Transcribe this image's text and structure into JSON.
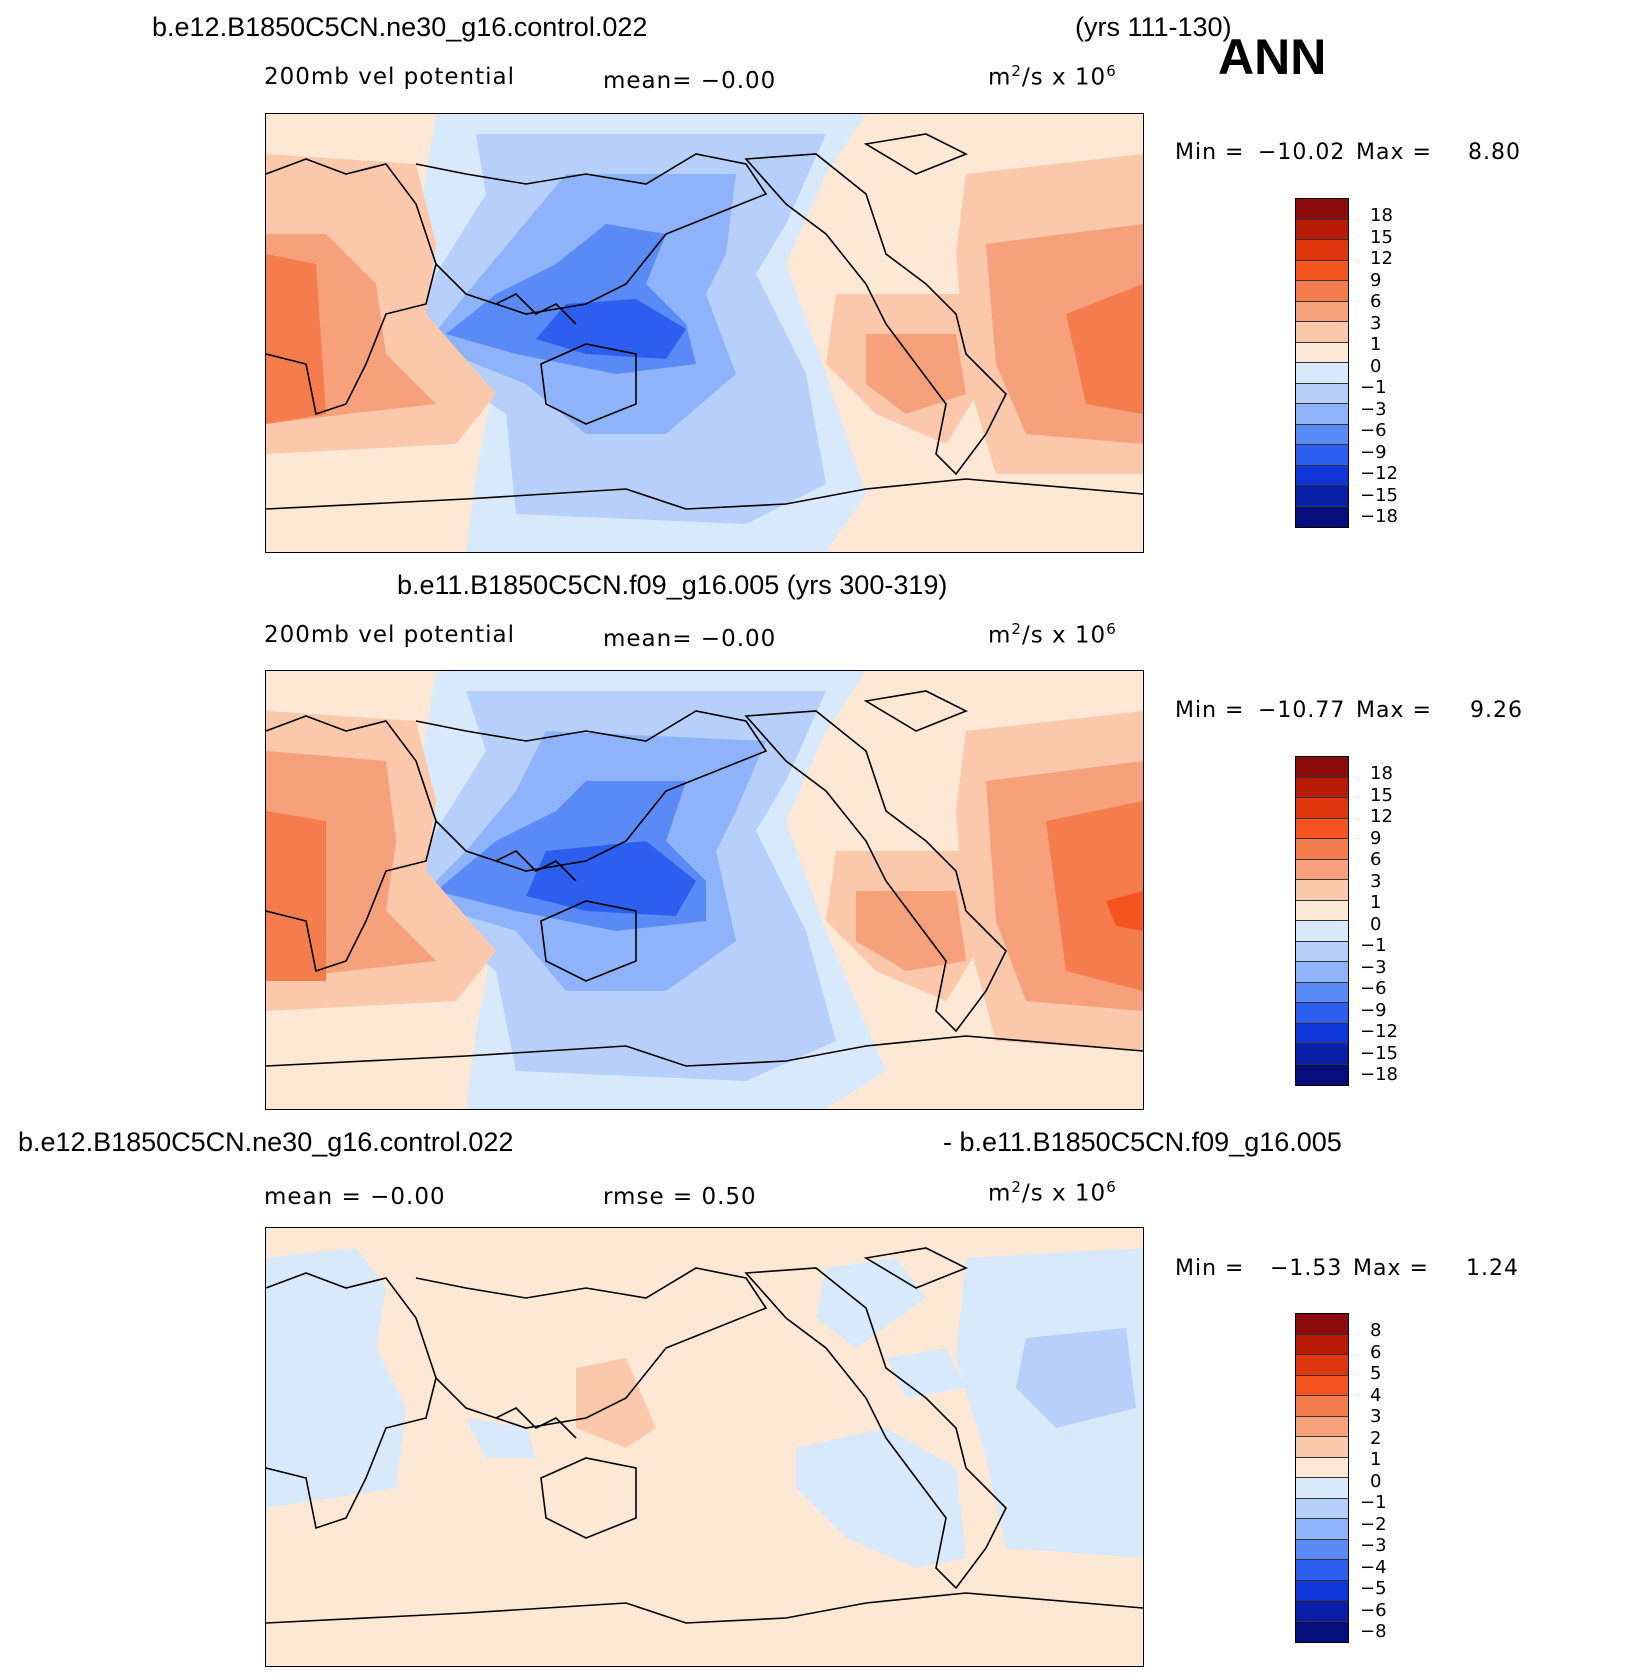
{
  "header": {
    "case1_title": "b.e12.B1850C5CN.ne30_g16.control.022",
    "case1_years": "(yrs 111-130)",
    "season": "ANN"
  },
  "panels": [
    {
      "id": "top",
      "left_label": "200mb  vel  potential",
      "mid_label": "mean=   −0.00",
      "units_base": "m",
      "units_exp1": "2",
      "units_mid": "/s  x  10",
      "units_exp2": "6",
      "min_label": "Min  =",
      "min_value": "−10.02",
      "max_label": "Max  =",
      "max_value": "8.80"
    },
    {
      "id": "middle",
      "title": "b.e11.B1850C5CN.f09_g16.005 (yrs 300-319)",
      "left_label": "200mb  vel  potential",
      "mid_label": "mean=   −0.00",
      "units_base": "m",
      "units_exp1": "2",
      "units_mid": "/s  x  10",
      "units_exp2": "6",
      "min_label": "Min  =",
      "min_value": "−10.77",
      "max_label": "Max  =",
      "max_value": "9.26"
    },
    {
      "id": "diff",
      "title_left": "b.e12.B1850C5CN.ne30_g16.control.022",
      "title_right": "- b.e11.B1850C5CN.f09_g16.005",
      "left_label": "mean =    −0.00",
      "mid_label": "rmse =      0.50",
      "units_base": "m",
      "units_exp1": "2",
      "units_mid": "/s  x  10",
      "units_exp2": "6",
      "min_label": "Min  =",
      "min_value": "−1.53",
      "max_label": "Max  =",
      "max_value": "1.24"
    }
  ],
  "colorbars": {
    "levels_main": [
      "18",
      "15",
      "12",
      "9",
      "6",
      "3",
      "1",
      "0",
      "−1",
      "−3",
      "−6",
      "−9",
      "−12",
      "−15",
      "−18"
    ],
    "levels_diff": [
      "8",
      "6",
      "5",
      "4",
      "3",
      "2",
      "1",
      "0",
      "−1",
      "−2",
      "−3",
      "−4",
      "−5",
      "−6",
      "−8"
    ],
    "colors": [
      "#8b0a0a",
      "#b81c06",
      "#e0360e",
      "#f5541f",
      "#f57c4d",
      "#f7a07c",
      "#fbc8ab",
      "#fde8d5",
      "#d8e9fb",
      "#b7d0fb",
      "#8fb3fa",
      "#5a8af5",
      "#2c5ff0",
      "#0d35d8",
      "#0a1fa8",
      "#050e7a"
    ]
  },
  "palette": {
    "pos1": "#fde8d5",
    "pos2": "#fbc8ab",
    "pos3": "#f7a07c",
    "pos4": "#f57c4d",
    "pos5": "#f5541f",
    "neg1": "#d8e9fb",
    "neg2": "#b7d0fb",
    "neg3": "#8fb3fa",
    "neg4": "#5a8af5",
    "neg5": "#2c5ff0",
    "coast": "#000000"
  }
}
